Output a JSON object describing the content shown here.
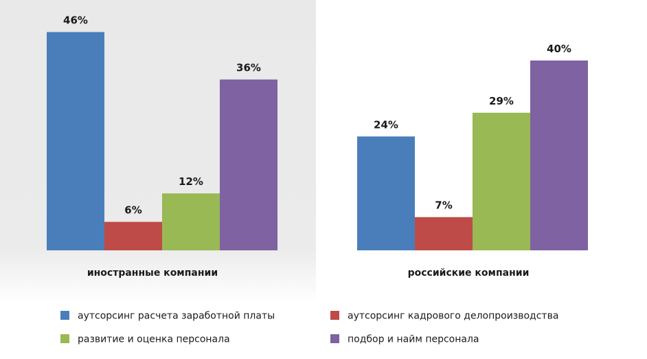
{
  "chart_data": {
    "type": "bar",
    "categories": [
      "иностранные компании",
      "российские компании"
    ],
    "series": [
      {
        "name": "аутсорсинг расчета заработной платы",
        "values": [
          46,
          24
        ],
        "color": "#4a7ebb",
        "labels": [
          "46%",
          "24%"
        ]
      },
      {
        "name": "аутсорсинг кадрового делопроизводства",
        "values": [
          6,
          7
        ],
        "color": "#be4b48",
        "labels": [
          "6%",
          "7%"
        ]
      },
      {
        "name": "развитие и оценка персонала",
        "values": [
          12,
          29
        ],
        "color": "#98b954",
        "labels": [
          "12%",
          "29%"
        ]
      },
      {
        "name": "подбор и найм персонала",
        "values": [
          36,
          40
        ],
        "color": "#7e62a1",
        "labels": [
          "36%",
          "40%"
        ]
      }
    ],
    "legend_position": "bottom",
    "grid": false
  }
}
